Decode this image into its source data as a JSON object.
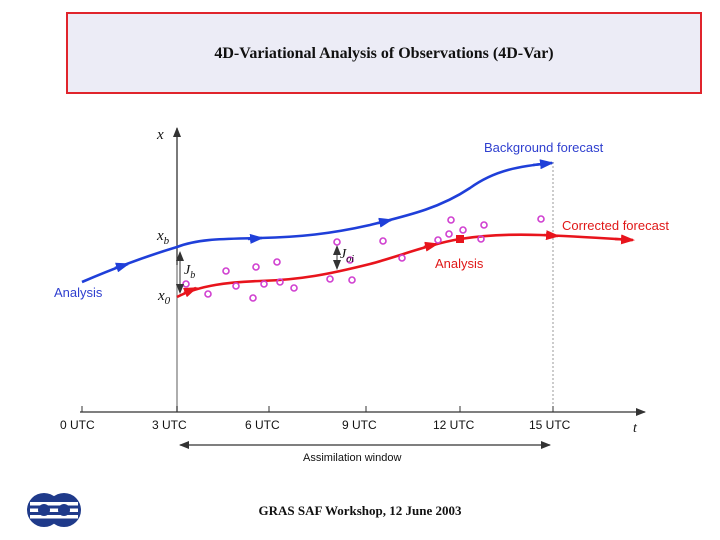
{
  "title": "4D-Variational Analysis of Observations (4D-Var)",
  "footer": "GRAS SAF Workshop, 12 June 2003",
  "diagram": {
    "y_axis_label": "x",
    "x_axis_label": "t",
    "time_ticks": [
      "0 UTC",
      "3 UTC",
      "6 UTC",
      "9 UTC",
      "12 UTC",
      "15 UTC"
    ],
    "background_forecast_label": "Background forecast",
    "corrected_forecast_label": "Corrected forecast",
    "analysis_left_label": "Analysis",
    "analysis_right_label": "Analysis",
    "xb_label": "x",
    "xb_sub": "b",
    "x0_label": "x",
    "x0_sub": "0",
    "jb_label": "J",
    "jb_sub": "b",
    "joi_label": "J",
    "joi_sub": "oi",
    "assimilation_window_label": "Assimilation window",
    "colors": {
      "blue": "#1f3fd9",
      "red": "#e8141c",
      "observation": "#d040d0",
      "label_blue": "#2f3fcf",
      "label_red": "#e01818"
    }
  },
  "logo": {
    "icon": "ecmwf-logo-icon"
  }
}
